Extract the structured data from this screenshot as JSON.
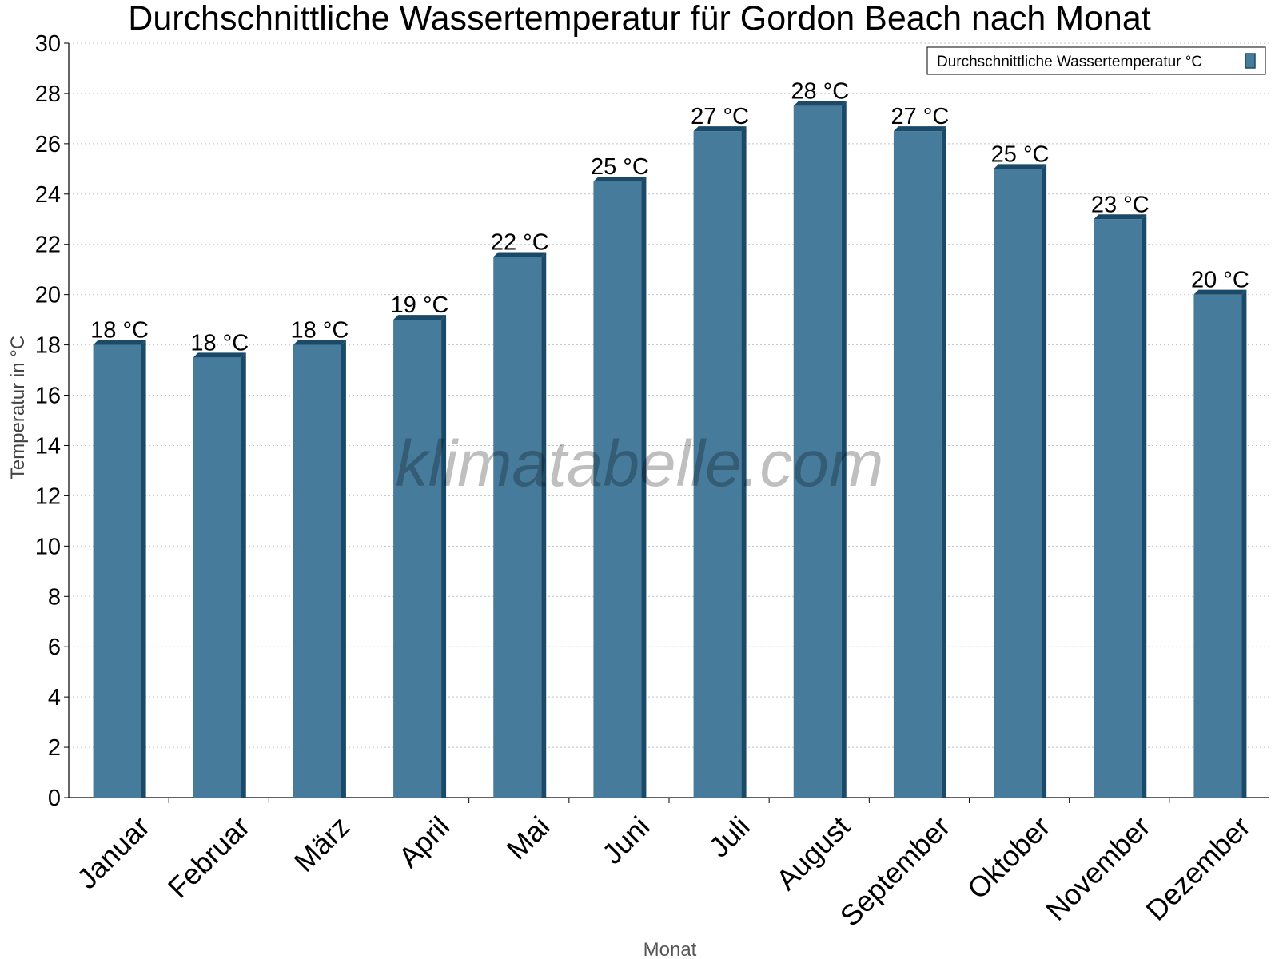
{
  "chart_data": {
    "type": "bar",
    "title": "Durchschnittliche Wassertemperatur für Gordon Beach nach Monat",
    "xlabel": "Monat",
    "ylabel": "Temperatur in °C",
    "categories": [
      "Januar",
      "Februar",
      "März",
      "April",
      "Mai",
      "Juni",
      "Juli",
      "August",
      "September",
      "Oktober",
      "November",
      "Dezember"
    ],
    "series": [
      {
        "name": "Durchschnittliche Wassertemperatur °C",
        "values": [
          18,
          17.5,
          18,
          19,
          21.5,
          24.5,
          26.5,
          27.5,
          26.5,
          25,
          23,
          20
        ],
        "labels": [
          "18 °C",
          "18 °C",
          "18 °C",
          "19 °C",
          "22 °C",
          "25 °C",
          "27 °C",
          "28 °C",
          "27 °C",
          "25 °C",
          "23 °C",
          "20 °C"
        ],
        "color": "#467b9c",
        "edge_color": "#1b4a69"
      }
    ],
    "ylim": [
      0,
      30
    ],
    "yticks": [
      "0",
      "2",
      "4",
      "6",
      "8",
      "10",
      "12",
      "14",
      "16",
      "18",
      "20",
      "22",
      "24",
      "26",
      "28",
      "30"
    ],
    "grid": true,
    "legend_position": "top-right",
    "watermark": "klimatabelle.com"
  }
}
